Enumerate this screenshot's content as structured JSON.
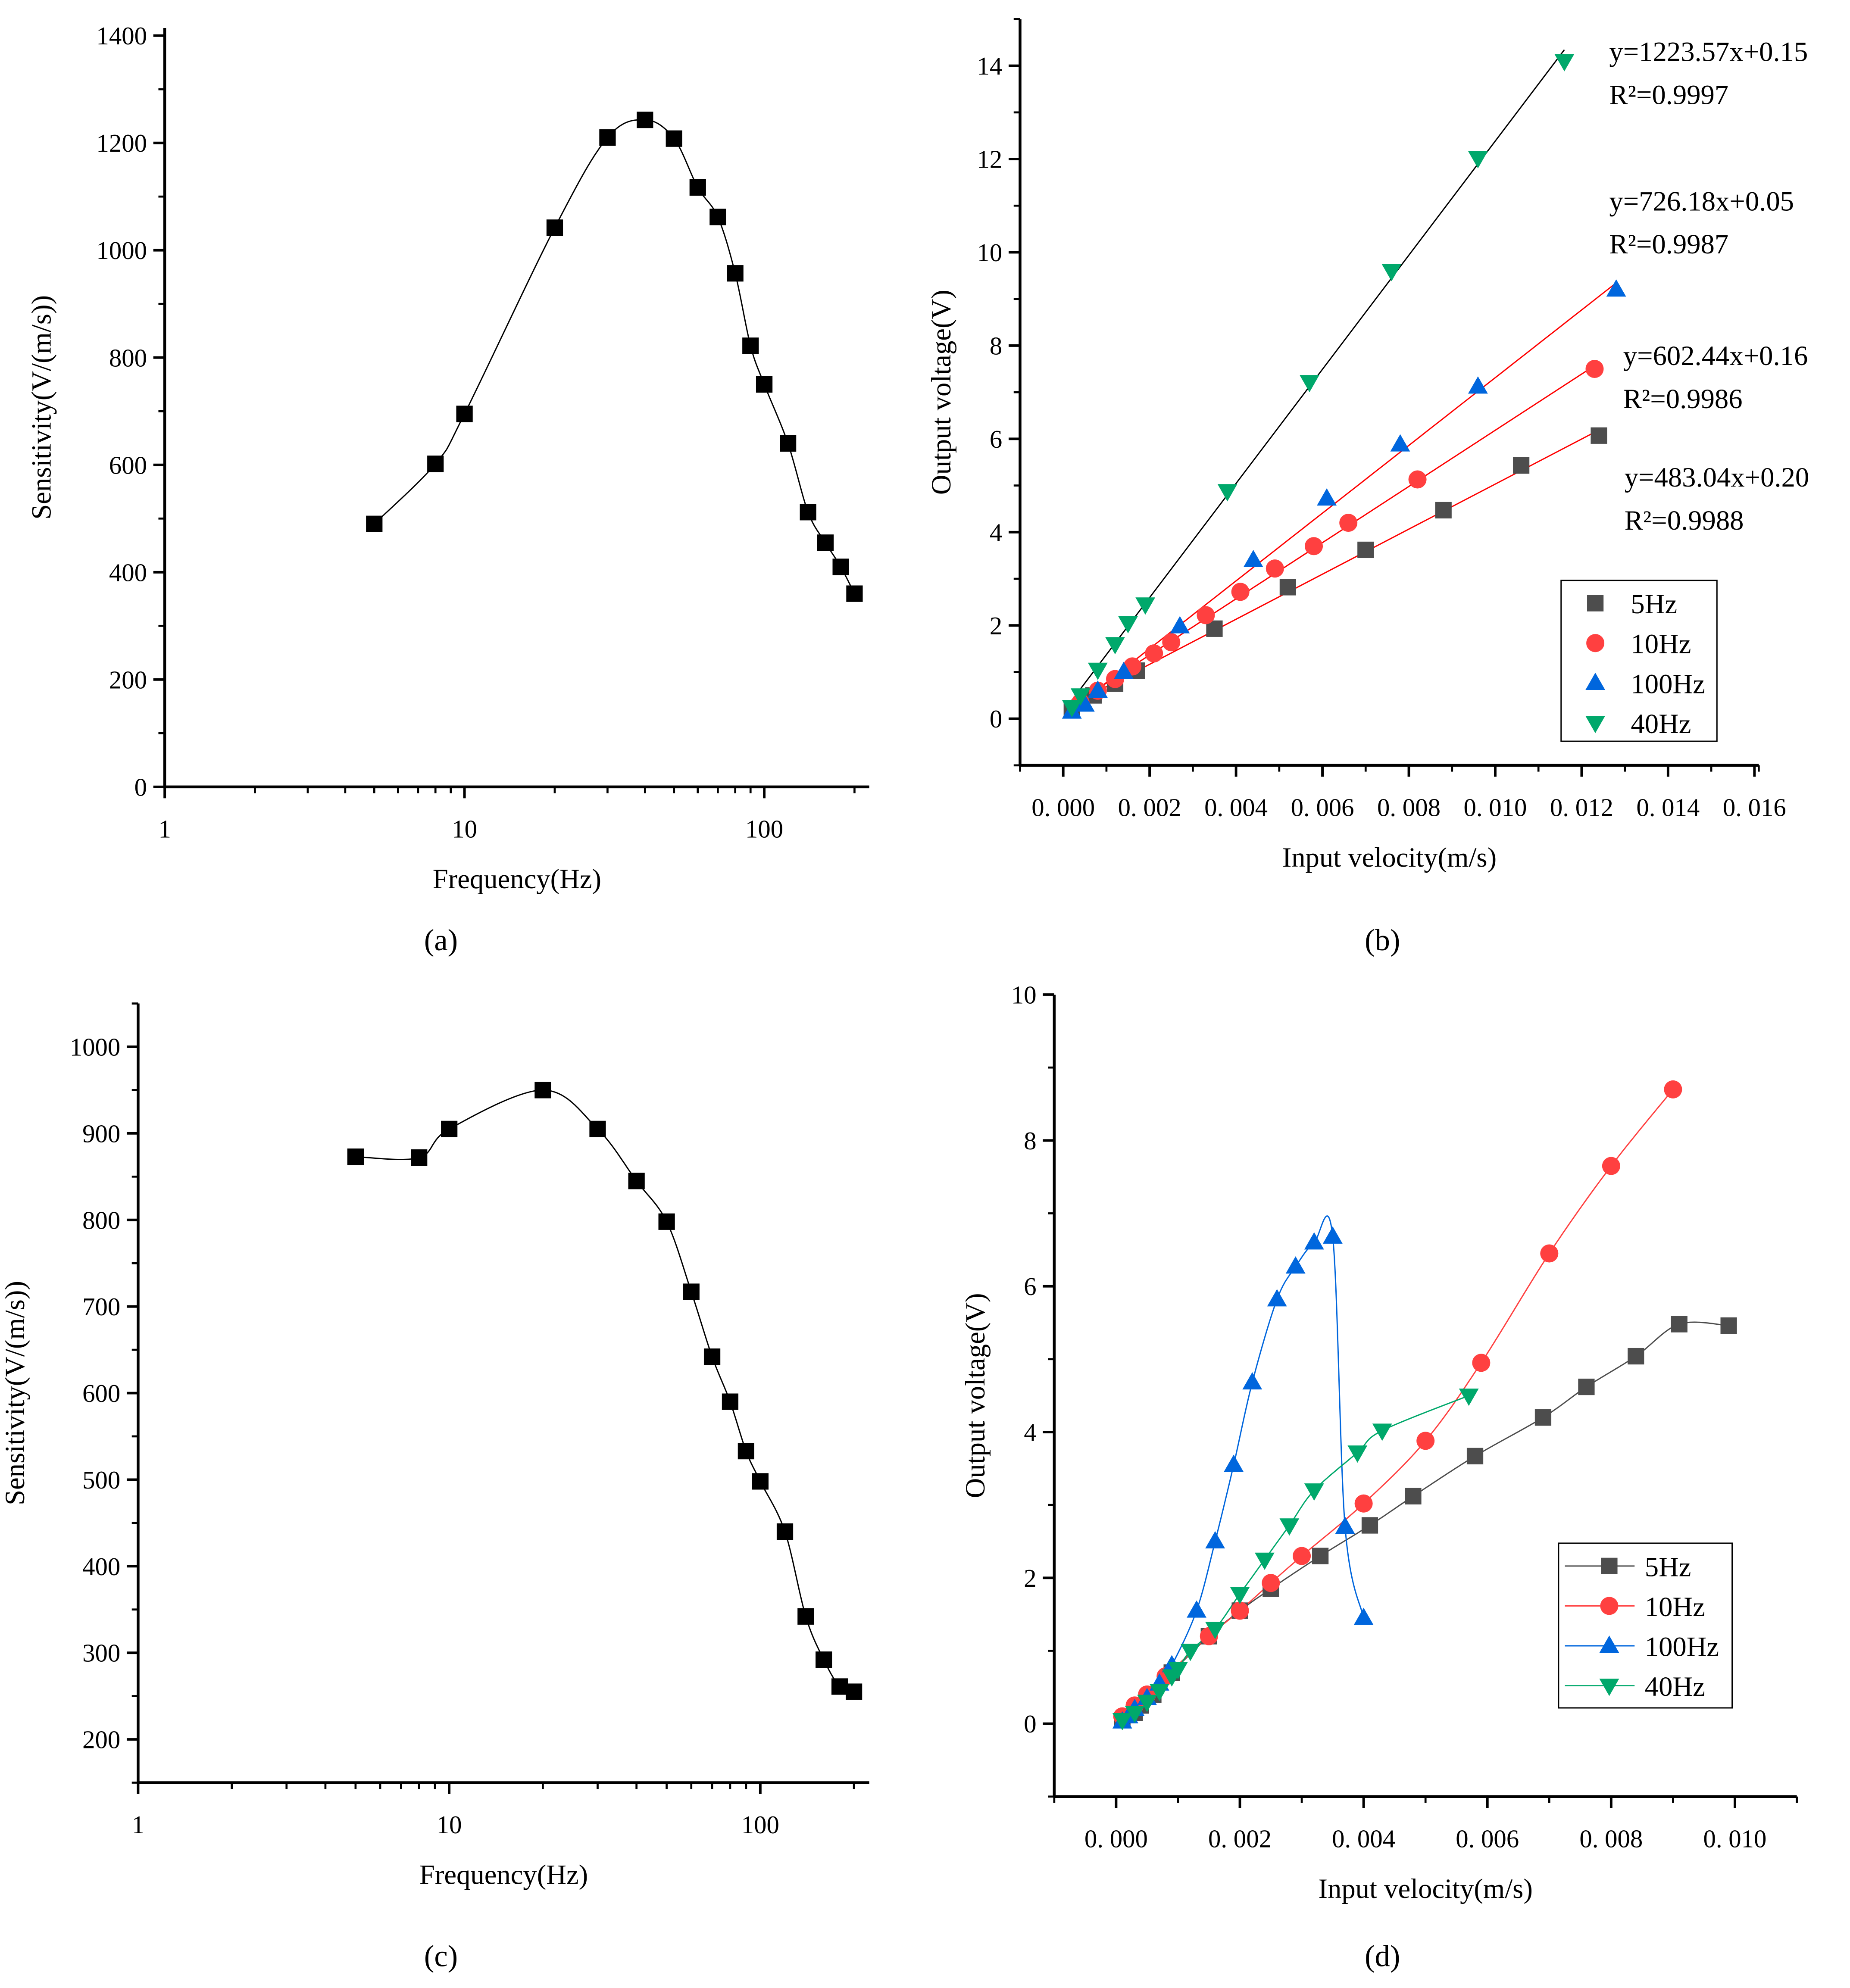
{
  "chart_data": [
    {
      "type": "line",
      "panel_label": "a",
      "title": "",
      "xlabel": "Frequency(Hz)",
      "ylabel": "Sensitivity(V/(m/s))",
      "xscale": "log",
      "xlim": [
        1,
        224
      ],
      "ylim": [
        0,
        1400
      ],
      "xticks": [
        1,
        10,
        100
      ],
      "xtick_labels": [
        "1",
        "10",
        "100"
      ],
      "yticks": [
        0,
        200,
        400,
        600,
        800,
        1000,
        1200,
        1400
      ],
      "ytick_labels": [
        "0",
        "200",
        "400",
        "600",
        "800",
        "1000",
        "1200",
        "1400"
      ],
      "yminor": 100,
      "grid": false,
      "series": [
        {
          "name": "sensitivity",
          "marker": "square",
          "color": "#000000",
          "line": "smooth",
          "x": [
            5,
            8,
            10,
            20,
            30,
            40,
            50,
            60,
            70,
            80,
            90,
            100,
            120,
            140,
            160,
            180,
            200
          ],
          "y": [
            490,
            602,
            695,
            1042,
            1210,
            1243,
            1208,
            1117,
            1062,
            957,
            822,
            750,
            640,
            512,
            455,
            410,
            360
          ]
        }
      ]
    },
    {
      "type": "scatter",
      "panel_label": "b",
      "title": "",
      "xlabel": "Input velocity(m/s)",
      "ylabel": "Output voltage(V)",
      "xscale": "linear",
      "xlim": [
        -0.001,
        0.0161
      ],
      "ylim": [
        -1,
        15
      ],
      "xticks": [
        0,
        0.002,
        0.004,
        0.006,
        0.008,
        0.01,
        0.012,
        0.014,
        0.016
      ],
      "xtick_labels": [
        "0. 000",
        "0. 002",
        "0. 004",
        "0. 006",
        "0. 008",
        "0. 010",
        "0. 012",
        "0. 014",
        "0. 016"
      ],
      "xminor": 0.001,
      "yticks": [
        0,
        2,
        4,
        6,
        8,
        10,
        12,
        14
      ],
      "ytick_labels": [
        "0",
        "2",
        "4",
        "6",
        "8",
        "10",
        "12",
        "14"
      ],
      "yminor": 1,
      "grid": false,
      "legend_position": "bottom-right",
      "legend_lines": false,
      "series": [
        {
          "name": "5Hz",
          "marker": "square",
          "color": "#4d4d4d",
          "x": [
            0.0002,
            0.0007,
            0.0012,
            0.0017,
            0.0035,
            0.0052,
            0.007,
            0.0088,
            0.0106,
            0.0124
          ],
          "y": [
            0.2,
            0.5,
            0.75,
            1.03,
            1.93,
            2.82,
            3.62,
            4.47,
            5.43,
            6.07
          ],
          "fit": {
            "slope": 483.04,
            "intercept": 0.2,
            "color": "#ff0000",
            "equation": "y=483.04x+0.20",
            "r2": "R²=0.9988"
          }
        },
        {
          "name": "10Hz",
          "marker": "circle",
          "color": "#ff4040",
          "x": [
            0.0004,
            0.0008,
            0.0012,
            0.0016,
            0.0021,
            0.0025,
            0.0033,
            0.0041,
            0.0049,
            0.0058,
            0.0066,
            0.0082,
            0.0123
          ],
          "y": [
            0.35,
            0.6,
            0.85,
            1.12,
            1.4,
            1.64,
            2.22,
            2.72,
            3.22,
            3.7,
            4.2,
            5.13,
            7.5
          ],
          "fit": {
            "slope": 602.44,
            "intercept": 0.16,
            "color": "#ff0000",
            "equation": "y=602.44x+0.16",
            "r2": "R²=0.9986"
          }
        },
        {
          "name": "100Hz",
          "marker": "triangle-up",
          "color": "#0066dd",
          "x": [
            0.0002,
            0.0005,
            0.0008,
            0.0014,
            0.0027,
            0.0044,
            0.0061,
            0.0078,
            0.0096,
            0.0128
          ],
          "y": [
            0.15,
            0.3,
            0.6,
            1.0,
            1.98,
            3.4,
            4.72,
            5.88,
            7.12,
            9.2
          ],
          "fit": {
            "slope": 726.18,
            "intercept": 0.05,
            "color": "#ff0000",
            "equation": "y=726.18x+0.05",
            "r2": "R²=0.9987"
          }
        },
        {
          "name": "40Hz",
          "marker": "triangle-down",
          "color": "#00a86b",
          "x": [
            0.0002,
            0.0004,
            0.0008,
            0.0012,
            0.0015,
            0.0019,
            0.0038,
            0.0057,
            0.0076,
            0.0096,
            0.0116
          ],
          "y": [
            0.25,
            0.5,
            1.05,
            1.6,
            2.05,
            2.45,
            4.88,
            7.22,
            9.6,
            12.02,
            14.1
          ],
          "fit": {
            "slope": 1223.57,
            "intercept": 0.15,
            "color": "#000000",
            "equation": "y=1223.57x+0.15",
            "r2": "R²=0.9997"
          }
        }
      ]
    },
    {
      "type": "line",
      "panel_label": "c",
      "title": "",
      "xlabel": "Frequency(Hz)",
      "ylabel": "Sensitivity(V/(m/s))",
      "xscale": "log",
      "xlim": [
        1,
        224
      ],
      "ylim": [
        150,
        1050
      ],
      "xticks": [
        1,
        10,
        100
      ],
      "xtick_labels": [
        "1",
        "10",
        "100"
      ],
      "yticks": [
        200,
        300,
        400,
        500,
        600,
        700,
        800,
        900,
        1000
      ],
      "ytick_labels": [
        "200",
        "300",
        "400",
        "500",
        "600",
        "700",
        "800",
        "900",
        "1000"
      ],
      "yminor": 50,
      "grid": false,
      "series": [
        {
          "name": "sensitivity",
          "marker": "square",
          "color": "#000000",
          "line": "smooth",
          "x": [
            5,
            8,
            10,
            20,
            30,
            40,
            50,
            60,
            70,
            80,
            90,
            100,
            120,
            140,
            160,
            180,
            200
          ],
          "y": [
            873,
            872,
            905,
            950,
            905,
            845,
            798,
            717,
            642,
            590,
            533,
            498,
            440,
            342,
            292,
            261,
            255
          ]
        }
      ]
    },
    {
      "type": "line",
      "panel_label": "d",
      "title": "",
      "xlabel": "Input velocity(m/s)",
      "ylabel": "Output voltage(V)",
      "xscale": "linear",
      "xlim": [
        -0.001,
        0.011
      ],
      "ylim": [
        -1,
        10
      ],
      "xticks": [
        0,
        0.002,
        0.004,
        0.006,
        0.008,
        0.01
      ],
      "xtick_labels": [
        "0. 000",
        "0. 002",
        "0. 004",
        "0. 006",
        "0. 008",
        "0. 010"
      ],
      "xminor": 0.001,
      "yticks": [
        0,
        2,
        4,
        6,
        8,
        10
      ],
      "ytick_labels": [
        "0",
        "2",
        "4",
        "6",
        "8",
        "10"
      ],
      "yminor": 1,
      "grid": false,
      "legend_position": "bottom-right",
      "legend_lines": true,
      "series": [
        {
          "name": "5Hz",
          "marker": "square",
          "color": "#4d4d4d",
          "line": "smooth",
          "x": [
            0.0001,
            0.0003,
            0.0004,
            0.0006,
            0.0009,
            0.0015,
            0.002,
            0.0025,
            0.0033,
            0.0041,
            0.0048,
            0.0058,
            0.0069,
            0.0076,
            0.0084,
            0.0091,
            0.0099
          ],
          "y": [
            0.05,
            0.15,
            0.25,
            0.4,
            0.7,
            1.2,
            1.55,
            1.85,
            2.3,
            2.72,
            3.12,
            3.67,
            4.2,
            4.62,
            5.04,
            5.48,
            5.46
          ]
        },
        {
          "name": "10Hz",
          "marker": "circle",
          "color": "#ff4040",
          "line": "smooth",
          "x": [
            0.0001,
            0.0003,
            0.0005,
            0.0008,
            0.0015,
            0.002,
            0.0025,
            0.003,
            0.004,
            0.005,
            0.0059,
            0.007,
            0.008,
            0.009
          ],
          "y": [
            0.1,
            0.25,
            0.4,
            0.65,
            1.2,
            1.55,
            1.93,
            2.3,
            3.02,
            3.88,
            4.95,
            6.45,
            7.65,
            8.7
          ]
        },
        {
          "name": "100Hz",
          "marker": "triangle-up",
          "color": "#0066dd",
          "line": "smooth",
          "x": [
            0.0001,
            0.0002,
            0.0003,
            0.0005,
            0.0007,
            0.0009,
            0.0013,
            0.0016,
            0.0019,
            0.0022,
            0.0026,
            0.0029,
            0.0032,
            0.0035,
            0.0037,
            0.004
          ],
          "y": [
            0.03,
            0.1,
            0.2,
            0.35,
            0.55,
            0.8,
            1.55,
            2.5,
            3.55,
            4.68,
            5.82,
            6.27,
            6.6,
            6.68,
            2.7,
            1.45
          ]
        },
        {
          "name": "40Hz",
          "marker": "triangle-down",
          "color": "#00a86b",
          "line": "smooth",
          "x": [
            0.0001,
            0.0003,
            0.0005,
            0.0007,
            0.0009,
            0.001,
            0.0012,
            0.0016,
            0.002,
            0.0024,
            0.0028,
            0.0032,
            0.0039,
            0.0043,
            0.0057
          ],
          "y": [
            0.05,
            0.15,
            0.3,
            0.45,
            0.65,
            0.75,
            1.0,
            1.3,
            1.78,
            2.25,
            2.72,
            3.2,
            3.72,
            4.02,
            4.5
          ]
        }
      ]
    }
  ],
  "captions": [
    "(a)",
    "(b)",
    "(c)",
    "(d)"
  ]
}
